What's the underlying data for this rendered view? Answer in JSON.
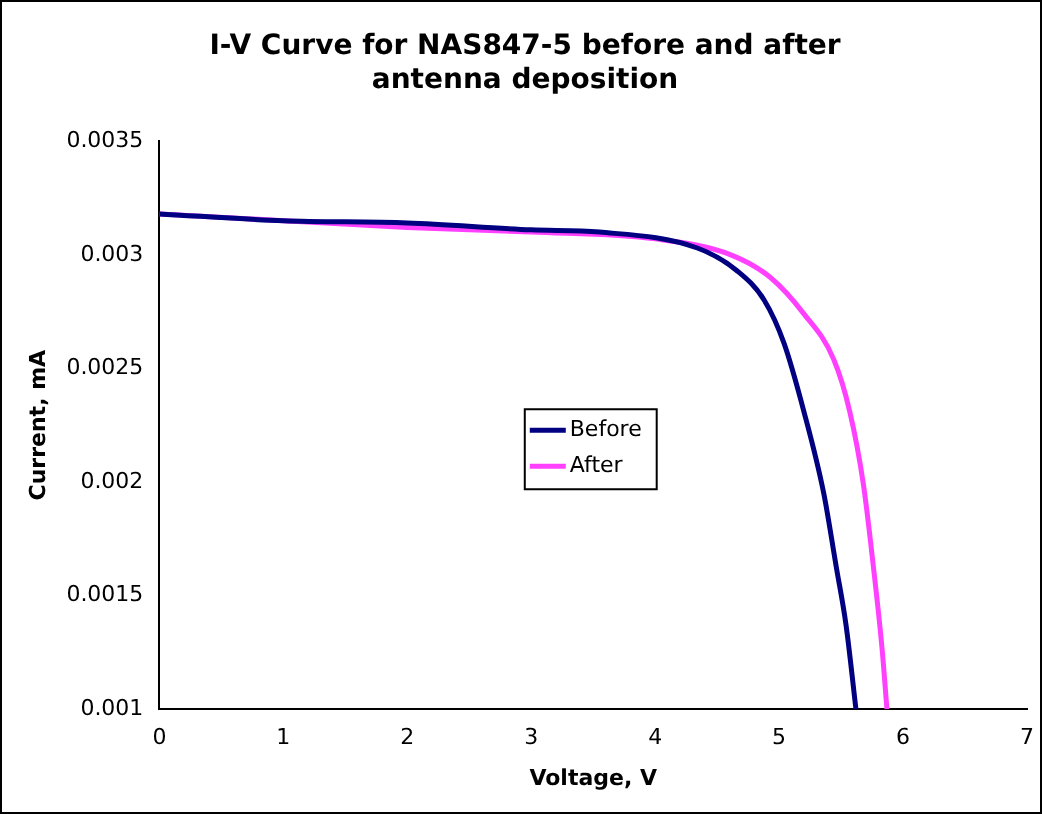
{
  "chart_data": {
    "type": "line",
    "title": "I-V Curve for NAS847-5 before and after antenna deposition",
    "xlabel": "Voltage, V",
    "ylabel": "Current, mA",
    "xlim": [
      0,
      7
    ],
    "xticks": [
      0,
      1,
      2,
      3,
      4,
      5,
      6,
      7
    ],
    "ylim": [
      0.001,
      0.0035
    ],
    "yticks": [
      0.001,
      0.0015,
      0.002,
      0.0025,
      0.003,
      0.0035
    ],
    "grid": false,
    "legend": "center",
    "marker": "none",
    "line_style": "solid",
    "series": [
      {
        "name": "Before",
        "color": "#000080",
        "x": [
          0,
          1,
          2,
          3,
          3.55,
          4.34,
          4.66,
          4.88,
          5.04,
          5.2,
          5.36,
          5.46,
          5.54,
          5.62
        ],
        "values": [
          0.00318,
          0.00315,
          0.00314,
          0.00311,
          0.0031,
          0.00303,
          0.00293,
          0.0028,
          0.00261,
          0.00231,
          0.00195,
          0.00163,
          0.00137,
          0.001
        ]
      },
      {
        "name": "After",
        "color": "#ff40ff",
        "x": [
          0,
          1,
          2,
          3,
          4,
          4.61,
          4.93,
          5.2,
          5.44,
          5.57,
          5.68,
          5.76,
          5.83,
          5.87
        ],
        "values": [
          0.00318,
          0.00315,
          0.00312,
          0.0031,
          0.00307,
          0.003,
          0.0029,
          0.00274,
          0.00254,
          0.00231,
          0.00199,
          0.00163,
          0.00127,
          0.001
        ]
      }
    ]
  }
}
